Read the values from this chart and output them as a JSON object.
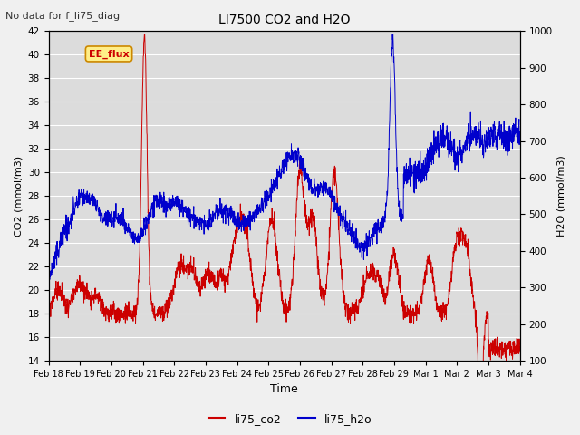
{
  "title": "LI7500 CO2 and H2O",
  "subtitle": "No data for f_li75_diag",
  "xlabel": "Time",
  "ylabel_left": "CO2 (mmol/m3)",
  "ylabel_right": "H2O (mmol/m3)",
  "ylim_left": [
    14,
    42
  ],
  "ylim_right": [
    100,
    1000
  ],
  "yticks_left": [
    14,
    16,
    18,
    20,
    22,
    24,
    26,
    28,
    30,
    32,
    34,
    36,
    38,
    40,
    42
  ],
  "yticks_right": [
    100,
    200,
    300,
    400,
    500,
    600,
    700,
    800,
    900,
    1000
  ],
  "xtick_labels": [
    "Feb 18",
    "Feb 19",
    "Feb 20",
    "Feb 21",
    "Feb 22",
    "Feb 23",
    "Feb 24",
    "Feb 25",
    "Feb 26",
    "Feb 27",
    "Feb 28",
    "Feb 29",
    "Mar 1",
    "Mar 2",
    "Mar 3",
    "Mar 4"
  ],
  "legend_label_co2": "li75_co2",
  "legend_label_h2o": "li75_h2o",
  "color_co2": "#cc0000",
  "color_h2o": "#0000cc",
  "legend_box_facecolor": "#ffee88",
  "legend_box_edgecolor": "#cc8800",
  "legend_box_label": "EE_flux",
  "legend_box_label_color": "#cc0000",
  "plot_bg": "#dcdcdc",
  "fig_bg": "#f0f0f0",
  "grid_color": "#ffffff",
  "n_points": 2000
}
